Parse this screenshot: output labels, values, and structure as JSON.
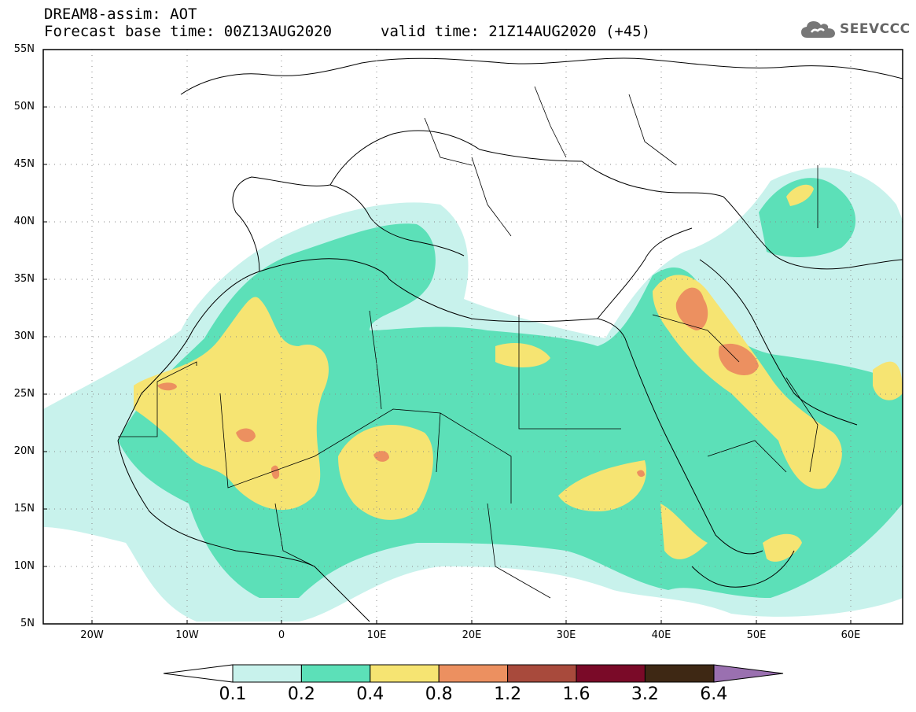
{
  "header": {
    "title": "DREAM8-assim: AOT",
    "base_time": "Forecast base time: 00Z13AUG2020",
    "valid_time": "valid time: 21Z14AUG2020 (+45)",
    "logo_text": "SEEVCCC"
  },
  "axes": {
    "lat_labels": [
      "55N",
      "50N",
      "45N",
      "40N",
      "35N",
      "30N",
      "25N",
      "20N",
      "15N",
      "10N",
      "5N"
    ],
    "lon_labels": [
      "20W",
      "10W",
      "0",
      "10E",
      "20E",
      "30E",
      "40E",
      "50E",
      "60E"
    ]
  },
  "colorbar": {
    "labels": [
      "0.1",
      "0.2",
      "0.4",
      "0.8",
      "1.2",
      "1.6",
      "3.2",
      "6.4"
    ],
    "colors": [
      "#c8f2ec",
      "#5ce0b8",
      "#f6e472",
      "#ec9060",
      "#a84a3c",
      "#7a0a28",
      "#3e2814",
      "#9a70b0"
    ]
  }
}
